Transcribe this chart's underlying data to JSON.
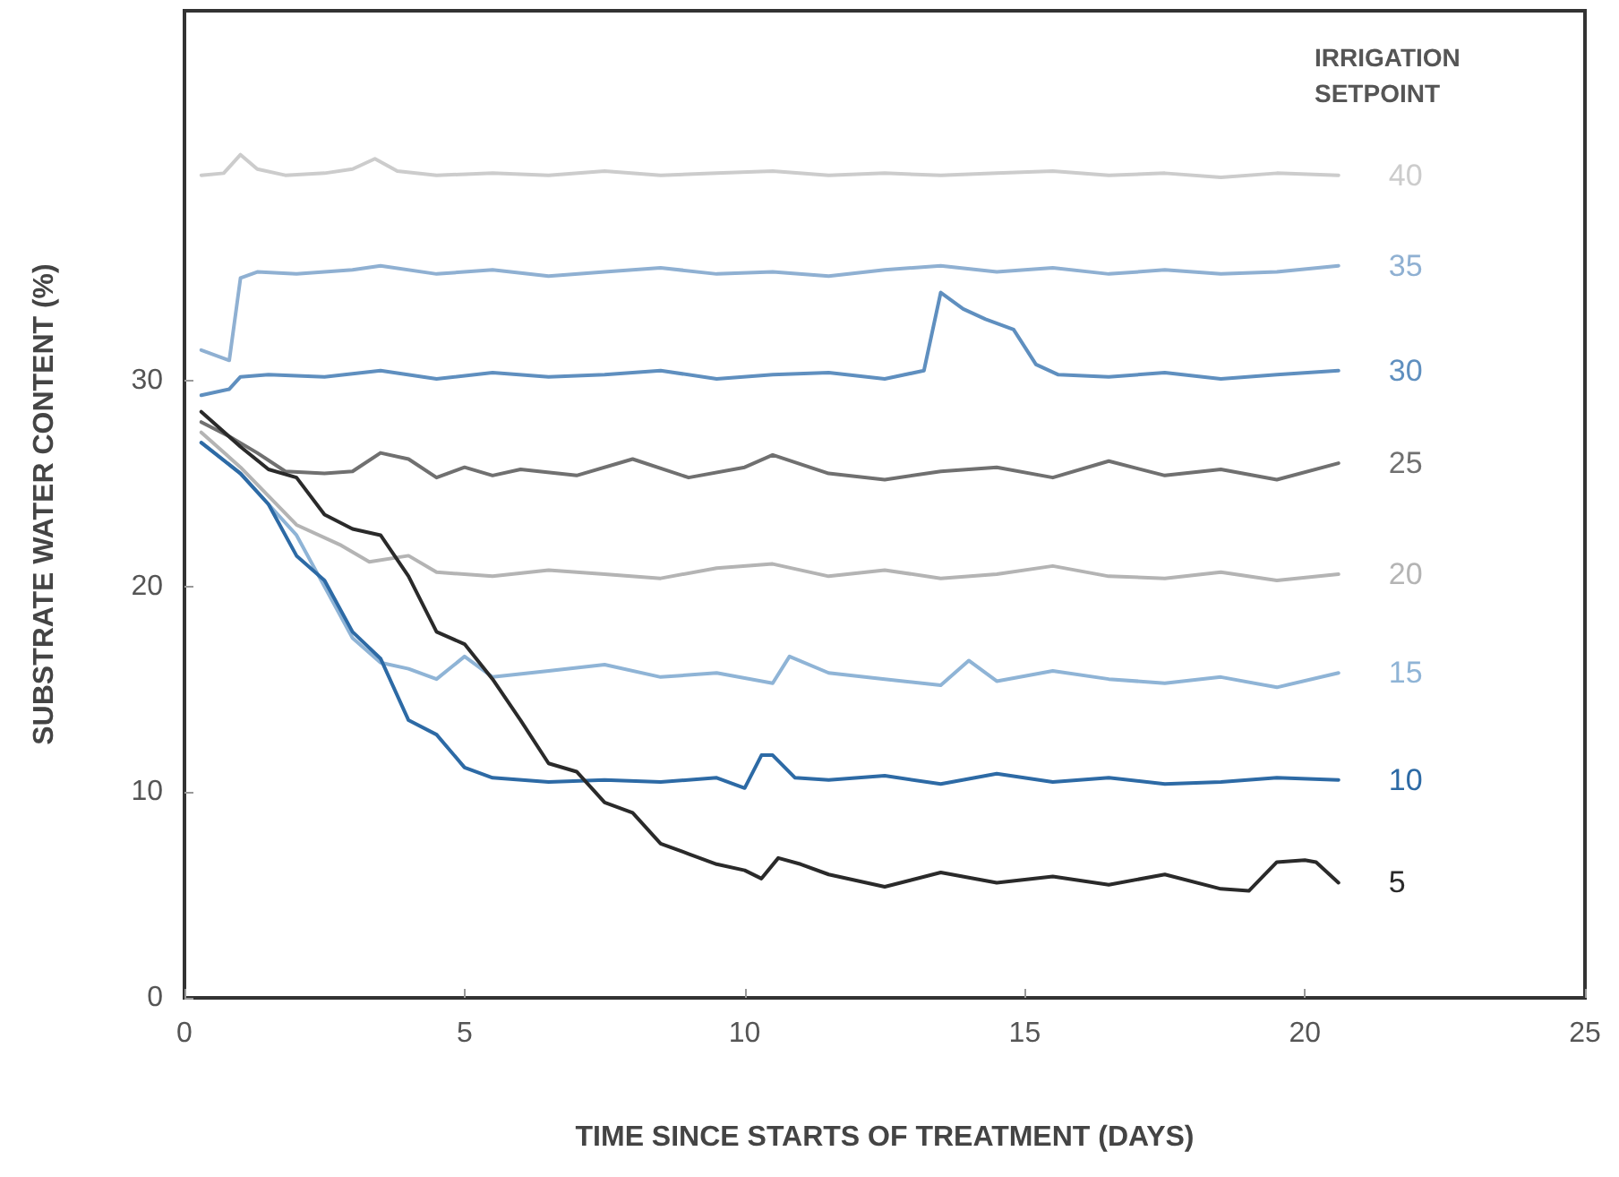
{
  "chart_data": {
    "type": "line",
    "xlabel": "TIME SINCE STARTS OF TREATMENT (DAYS)",
    "ylabel": "SUBSTRATE WATER CONTENT (%)",
    "legend_title": "IRRIGATION SETPOINT",
    "xlim": [
      0,
      25
    ],
    "xticks": [
      0,
      5,
      10,
      15,
      20,
      25
    ],
    "ylim": [
      0,
      48
    ],
    "yticks": [
      0,
      10,
      20,
      30
    ],
    "grid": false,
    "legend": false,
    "marker": "none",
    "line_style": "solid",
    "series": [
      {
        "name": "40",
        "color": "#cccccc",
        "x": [
          0.3,
          0.7,
          1,
          1.3,
          1.8,
          2.5,
          3,
          3.4,
          3.8,
          4.5,
          5.5,
          6.5,
          7.5,
          8.5,
          9.5,
          10.5,
          11.5,
          12.5,
          13.5,
          14.5,
          15.5,
          16.5,
          17.5,
          18.5,
          19.5,
          20.6
        ],
        "values": [
          40,
          40.1,
          41,
          40.3,
          40,
          40.1,
          40.3,
          40.8,
          40.2,
          40,
          40.1,
          40,
          40.2,
          40,
          40.1,
          40.2,
          40,
          40.1,
          40,
          40.1,
          40.2,
          40,
          40.1,
          39.9,
          40.1,
          40
        ]
      },
      {
        "name": "35",
        "color": "#8fb0d2",
        "x": [
          0.3,
          0.8,
          1,
          1.3,
          2,
          3,
          3.5,
          4.5,
          5.5,
          6.5,
          7.5,
          8.5,
          9.5,
          10.5,
          11.5,
          12.5,
          13.5,
          14.5,
          15.5,
          16.5,
          17.5,
          18.5,
          19.5,
          20.6
        ],
        "values": [
          31.5,
          31,
          35,
          35.3,
          35.2,
          35.4,
          35.6,
          35.2,
          35.4,
          35.1,
          35.3,
          35.5,
          35.2,
          35.3,
          35.1,
          35.4,
          35.6,
          35.3,
          35.5,
          35.2,
          35.4,
          35.2,
          35.3,
          35.6
        ]
      },
      {
        "name": "30",
        "color": "#5f8fbf",
        "x": [
          0.3,
          0.8,
          1,
          1.5,
          2.5,
          3.5,
          4.5,
          5.5,
          6.5,
          7.5,
          8.5,
          9.5,
          10.5,
          11.5,
          12.5,
          13.2,
          13.5,
          13.9,
          14.3,
          14.8,
          15.2,
          15.6,
          16.5,
          17.5,
          18.5,
          19.5,
          20.6
        ],
        "values": [
          29.3,
          29.6,
          30.2,
          30.3,
          30.2,
          30.5,
          30.1,
          30.4,
          30.2,
          30.3,
          30.5,
          30.1,
          30.3,
          30.4,
          30.1,
          30.5,
          34.3,
          33.5,
          33,
          32.5,
          30.8,
          30.3,
          30.2,
          30.4,
          30.1,
          30.3,
          30.5
        ]
      },
      {
        "name": "25",
        "color": "#707070",
        "x": [
          0.3,
          0.8,
          1.3,
          1.8,
          2.5,
          3,
          3.5,
          4,
          4.5,
          5,
          5.5,
          6,
          7,
          8,
          9,
          10,
          10.5,
          11.5,
          12.5,
          13.5,
          14.5,
          15.5,
          16.5,
          17.5,
          18.5,
          19.5,
          20.6
        ],
        "values": [
          28,
          27.3,
          26.5,
          25.6,
          25.5,
          25.6,
          26.5,
          26.2,
          25.3,
          25.8,
          25.4,
          25.7,
          25.4,
          26.2,
          25.3,
          25.8,
          26.4,
          25.5,
          25.2,
          25.6,
          25.8,
          25.3,
          26.1,
          25.4,
          25.7,
          25.2,
          26
        ]
      },
      {
        "name": "20",
        "color": "#b4b4b4",
        "x": [
          0.3,
          1,
          2,
          2.8,
          3.3,
          4,
          4.5,
          5.5,
          6.5,
          7.5,
          8.5,
          9.5,
          10.5,
          11.5,
          12.5,
          13.5,
          14.5,
          15.5,
          16.5,
          17.5,
          18.5,
          19.5,
          20.6
        ],
        "values": [
          27.5,
          25.8,
          23,
          22,
          21.2,
          21.5,
          20.7,
          20.5,
          20.8,
          20.6,
          20.4,
          20.9,
          21.1,
          20.5,
          20.8,
          20.4,
          20.6,
          21,
          20.5,
          20.4,
          20.7,
          20.3,
          20.6
        ]
      },
      {
        "name": "15",
        "color": "#8fb4d6",
        "x": [
          0.3,
          1,
          1.5,
          2,
          2.5,
          3,
          3.5,
          4,
          4.5,
          5,
          5.5,
          6.5,
          7.5,
          8.5,
          9.5,
          10.5,
          10.8,
          11.5,
          12.5,
          13.5,
          14,
          14.5,
          15.5,
          16.5,
          17.5,
          18.5,
          19.5,
          20.6
        ],
        "values": [
          27,
          25.5,
          24,
          22.5,
          20,
          17.5,
          16.3,
          16,
          15.5,
          16.6,
          15.6,
          15.9,
          16.2,
          15.6,
          15.8,
          15.3,
          16.6,
          15.8,
          15.5,
          15.2,
          16.4,
          15.4,
          15.9,
          15.5,
          15.3,
          15.6,
          15.1,
          15.8
        ]
      },
      {
        "name": "10",
        "color": "#2d6aa5",
        "x": [
          0.3,
          1,
          1.5,
          2,
          2.5,
          3,
          3.5,
          4,
          4.5,
          5,
          5.5,
          6.5,
          7.5,
          8.5,
          9.5,
          10,
          10.3,
          10.5,
          10.9,
          11.5,
          12.5,
          13.5,
          14.5,
          15.5,
          16.5,
          17.5,
          18.5,
          19.5,
          20.6
        ],
        "values": [
          27,
          25.5,
          24,
          21.5,
          20.3,
          17.8,
          16.5,
          13.5,
          12.8,
          11.2,
          10.7,
          10.5,
          10.6,
          10.5,
          10.7,
          10.2,
          11.8,
          11.8,
          10.7,
          10.6,
          10.8,
          10.4,
          10.9,
          10.5,
          10.7,
          10.4,
          10.5,
          10.7,
          10.6
        ]
      },
      {
        "name": "5",
        "color": "#2a2a2a",
        "x": [
          0.3,
          1,
          1.5,
          2,
          2.5,
          3,
          3.5,
          4,
          4.5,
          5,
          5.5,
          6,
          6.5,
          7,
          7.5,
          8,
          8.5,
          9,
          9.5,
          10,
          10.3,
          10.6,
          11,
          11.5,
          12.5,
          13.5,
          14.5,
          15.5,
          16.5,
          17.5,
          18.5,
          19,
          19.5,
          20,
          20.2,
          20.6
        ],
        "values": [
          28.5,
          26.8,
          25.7,
          25.3,
          23.5,
          22.8,
          22.5,
          20.5,
          17.8,
          17.2,
          15.5,
          13.5,
          11.4,
          11,
          9.5,
          9,
          7.5,
          7,
          6.5,
          6.2,
          5.8,
          6.8,
          6.5,
          6,
          5.4,
          6.1,
          5.6,
          5.9,
          5.5,
          6,
          5.3,
          5.2,
          6.6,
          6.7,
          6.6,
          5.6
        ]
      }
    ]
  }
}
